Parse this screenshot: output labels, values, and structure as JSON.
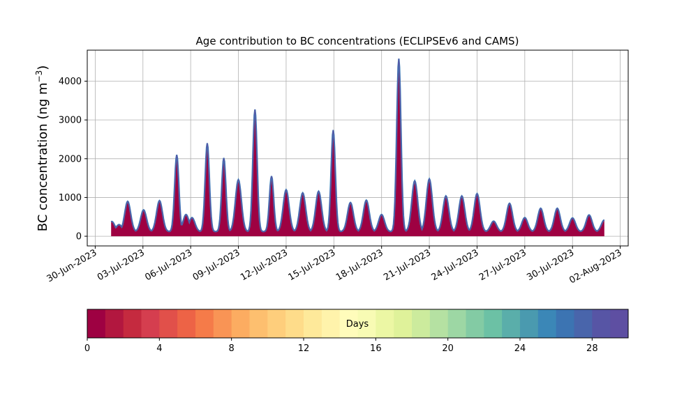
{
  "chart_data": {
    "type": "area",
    "title": "Age contribution to BC concentrations (ECLIPSEv6 and CAMS)",
    "xlabel": "",
    "ylabel": "BC concentration (ng m",
    "ylabel_sup": "−3",
    "ylabel_close": ")",
    "grid": true,
    "xlim": [
      "2023-06-29T12:00",
      "2023-08-02T12:00"
    ],
    "ylim": [
      -250,
      4800
    ],
    "yticks": [
      0,
      1000,
      2000,
      3000,
      4000
    ],
    "xtick_labels": [
      "30-Jun-2023",
      "03-Jul-2023",
      "06-Jul-2023",
      "09-Jul-2023",
      "12-Jul-2023",
      "15-Jul-2023",
      "18-Jul-2023",
      "21-Jul-2023",
      "24-Jul-2023",
      "27-Jul-2023",
      "30-Jul-2023",
      "02-Aug-2023"
    ],
    "xticks": [
      "2023-06-30",
      "2023-07-03",
      "2023-07-06",
      "2023-07-09",
      "2023-07-12",
      "2023-07-15",
      "2023-07-18",
      "2023-07-21",
      "2023-07-24",
      "2023-07-27",
      "2023-07-30",
      "2023-08-02"
    ],
    "series_start": "2023-07-01",
    "series_end": "2023-08-01",
    "baseline": 120,
    "peaks": [
      {
        "date": "2023-07-01T01:00",
        "value": 380
      },
      {
        "date": "2023-07-01T12:00",
        "value": 300
      },
      {
        "date": "2023-07-02T01:00",
        "value": 900
      },
      {
        "date": "2023-07-03T01:00",
        "value": 680
      },
      {
        "date": "2023-07-04T01:00",
        "value": 920
      },
      {
        "date": "2023-07-05T03:00",
        "value": 2100
      },
      {
        "date": "2023-07-05T17:00",
        "value": 560
      },
      {
        "date": "2023-07-06T02:00",
        "value": 480
      },
      {
        "date": "2023-07-07T01:00",
        "value": 2400
      },
      {
        "date": "2023-07-08T02:00",
        "value": 2020
      },
      {
        "date": "2023-07-09T00:00",
        "value": 1460
      },
      {
        "date": "2023-07-10T01:00",
        "value": 3270
      },
      {
        "date": "2023-07-11T02:00",
        "value": 1550
      },
      {
        "date": "2023-07-12T00:00",
        "value": 1200
      },
      {
        "date": "2023-07-13T01:00",
        "value": 1120
      },
      {
        "date": "2023-07-14T01:00",
        "value": 1160
      },
      {
        "date": "2023-07-14T23:00",
        "value": 2740
      },
      {
        "date": "2023-07-16T01:00",
        "value": 870
      },
      {
        "date": "2023-07-17T01:00",
        "value": 930
      },
      {
        "date": "2023-07-18T00:00",
        "value": 560
      },
      {
        "date": "2023-07-19T02:00",
        "value": 4580
      },
      {
        "date": "2023-07-20T02:00",
        "value": 1430
      },
      {
        "date": "2023-07-21T00:00",
        "value": 1480
      },
      {
        "date": "2023-07-22T01:00",
        "value": 1040
      },
      {
        "date": "2023-07-23T01:00",
        "value": 1040
      },
      {
        "date": "2023-07-24T00:00",
        "value": 1100
      },
      {
        "date": "2023-07-25T01:00",
        "value": 390
      },
      {
        "date": "2023-07-26T01:00",
        "value": 850
      },
      {
        "date": "2023-07-27T00:00",
        "value": 480
      },
      {
        "date": "2023-07-28T00:00",
        "value": 720
      },
      {
        "date": "2023-07-29T01:00",
        "value": 720
      },
      {
        "date": "2023-07-30T00:00",
        "value": 470
      },
      {
        "date": "2023-07-31T01:00",
        "value": 550
      },
      {
        "date": "2023-08-01T00:00",
        "value": 420
      }
    ],
    "fill_color": "#9e0142",
    "edge_colors": [
      "#5e4fa2",
      "#3288bd",
      "#66c2a5"
    ],
    "colorbar": {
      "label": "Days",
      "range": [
        0,
        30
      ],
      "ticks": [
        0,
        4,
        8,
        12,
        16,
        20,
        24,
        28
      ],
      "colors": [
        "#9e0142",
        "#b2173f",
        "#c52a3f",
        "#d53e4f",
        "#e1504a",
        "#ed6346",
        "#f57b49",
        "#f99455",
        "#fcac61",
        "#fdbf6f",
        "#fece7c",
        "#fedc8a",
        "#fee99a",
        "#fff3ab",
        "#fffcbb",
        "#f8fbb4",
        "#ecf7a4",
        "#dff29a",
        "#cceb9d",
        "#b5e1a2",
        "#9dd7a4",
        "#83cba4",
        "#6cc1a5",
        "#5aaeaa",
        "#4a9aaf",
        "#3b87b7",
        "#3c74b2",
        "#4965ab",
        "#5755a5",
        "#5e4fa2"
      ]
    }
  }
}
